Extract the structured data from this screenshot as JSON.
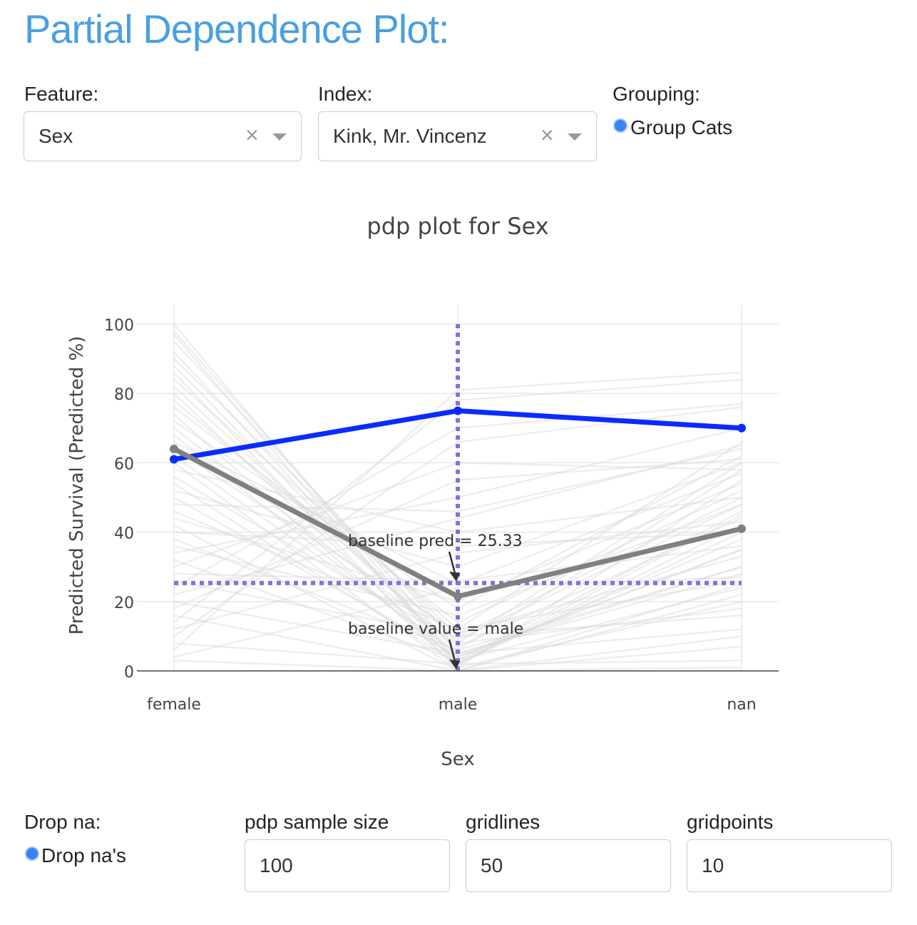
{
  "page": {
    "title": "Partial Dependence Plot:"
  },
  "controls": {
    "feature": {
      "label": "Feature:",
      "value": "Sex"
    },
    "index": {
      "label": "Index:",
      "value": "Kink, Mr. Vincenz"
    },
    "grouping": {
      "label": "Grouping:",
      "option": "Group Cats",
      "checked": true
    },
    "dropna": {
      "label": "Drop na:",
      "option": "Drop na's",
      "checked": true
    },
    "sample_size": {
      "label": "pdp sample size",
      "value": "100"
    },
    "gridlines": {
      "label": "gridlines",
      "value": "50"
    },
    "gridpoints": {
      "label": "gridpoints",
      "value": "10"
    }
  },
  "colors": {
    "accent": "#4a9fe0",
    "index_line": "#0a2bff",
    "average_line": "#808080",
    "baseline": "#8a6fd6",
    "ice_line": "#d9d9d9"
  },
  "chart_data": {
    "type": "line",
    "title": "pdp plot for Sex",
    "xlabel": "Sex",
    "ylabel": "Predicted Survival (Predicted %)",
    "categories": [
      "female",
      "male",
      "nan"
    ],
    "yticks": [
      0,
      20,
      40,
      60,
      80,
      100
    ],
    "ylim": [
      0,
      100
    ],
    "grid": true,
    "series": [
      {
        "values": [
          61,
          75,
          70
        ],
        "color": "#0a2bff"
      },
      {
        "values": [
          64,
          21.5,
          41
        ],
        "color": "#808080"
      }
    ],
    "ice_lines": [
      [
        100,
        2,
        40
      ],
      [
        98,
        5,
        30
      ],
      [
        97,
        1,
        55
      ],
      [
        95,
        8,
        60
      ],
      [
        92,
        3,
        46
      ],
      [
        90,
        10,
        50
      ],
      [
        88,
        4,
        35
      ],
      [
        86,
        0,
        25
      ],
      [
        84,
        12,
        66
      ],
      [
        82,
        6,
        58
      ],
      [
        80,
        2,
        42
      ],
      [
        78,
        9,
        48
      ],
      [
        76,
        14,
        52
      ],
      [
        74,
        1,
        20
      ],
      [
        72,
        18,
        62
      ],
      [
        70,
        7,
        44
      ],
      [
        68,
        3,
        38
      ],
      [
        66,
        25,
        57
      ],
      [
        64,
        11,
        33
      ],
      [
        62,
        5,
        28
      ],
      [
        60,
        0,
        22
      ],
      [
        58,
        40,
        50
      ],
      [
        56,
        8,
        18
      ],
      [
        54,
        2,
        45
      ],
      [
        52,
        30,
        60
      ],
      [
        50,
        4,
        35
      ],
      [
        48,
        46,
        64
      ],
      [
        46,
        12,
        26
      ],
      [
        44,
        20,
        54
      ],
      [
        42,
        0,
        10
      ],
      [
        40,
        36,
        40
      ],
      [
        38,
        6,
        30
      ],
      [
        36,
        16,
        48
      ],
      [
        34,
        50,
        70
      ],
      [
        32,
        3,
        24
      ],
      [
        30,
        60,
        58
      ],
      [
        28,
        26,
        36
      ],
      [
        26,
        10,
        16
      ],
      [
        24,
        70,
        77
      ],
      [
        22,
        44,
        65
      ],
      [
        20,
        5,
        12
      ],
      [
        18,
        55,
        61
      ],
      [
        16,
        0,
        7
      ],
      [
        14,
        78,
        84
      ],
      [
        12,
        34,
        43
      ],
      [
        10,
        66,
        76
      ],
      [
        8,
        2,
        3
      ],
      [
        6,
        81,
        86
      ],
      [
        4,
        24,
        27
      ],
      [
        3,
        0,
        1
      ]
    ],
    "hline": {
      "y": 25.33,
      "style": "dotted"
    },
    "vline": {
      "x": "male",
      "style": "dotted"
    },
    "annotations": [
      {
        "text": "baseline pred = 25.33",
        "x": "male",
        "y": 25.33
      },
      {
        "text": "baseline value = male",
        "x": "male",
        "y": 0
      }
    ]
  }
}
